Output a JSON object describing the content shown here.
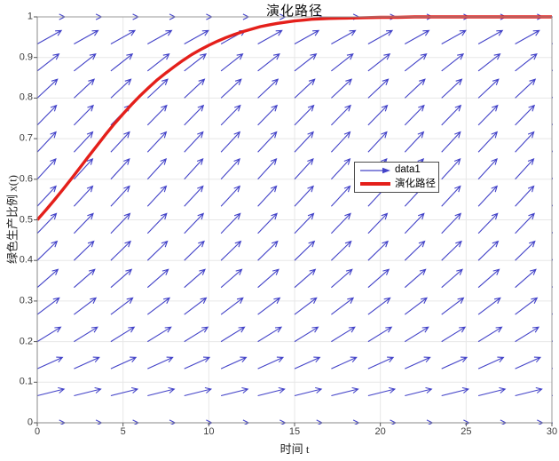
{
  "title": "演化路径",
  "axes": {
    "xlabel": "时间 t",
    "ylabel": "绿色生产比例 x(t)",
    "x_tick_labels": [
      "0",
      "5",
      "10",
      "15",
      "20",
      "25",
      "30"
    ],
    "y_tick_labels": [
      "0",
      "0.1",
      "0.2",
      "0.3",
      "0.4",
      "0.5",
      "0.6",
      "0.7",
      "0.8",
      "0.9",
      "1"
    ]
  },
  "legend": {
    "entries": [
      {
        "label": "data1",
        "marker": "blue-quiver-arrow",
        "color": "#4343c8"
      },
      {
        "label": "演化路径",
        "marker": "red-thick-line",
        "color": "#e41f1a"
      }
    ]
  },
  "colors": {
    "quiver": "#4343c8",
    "trajectory": "#e41f1a",
    "grid": "#e7e7e7",
    "axis_box": "#999999",
    "axis_main": "#8a8a8a",
    "tick": "#555555",
    "background": "#ffffff"
  },
  "chart_data": {
    "type": "line",
    "title": "演化路径",
    "xlabel": "时间 t",
    "ylabel": "绿色生产比例 x(t)",
    "xlim": [
      0,
      30
    ],
    "ylim": [
      0,
      1
    ],
    "grid": true,
    "x_ticks": [
      0,
      5,
      10,
      15,
      20,
      25,
      30
    ],
    "y_ticks": [
      0,
      0.1,
      0.2,
      0.3,
      0.4,
      0.5,
      0.6,
      0.7,
      0.8,
      0.9,
      1
    ],
    "legend_position": "inside-center-right",
    "series": [
      {
        "name": "data1",
        "type": "quiver",
        "color": "#4343c8",
        "description": "direction field of replicator dynamics dx/dt = k·x(1-x); arrows point up-right, horizontal at x=0 and x=1, steepest near the middle",
        "k": 0.26,
        "grid": {
          "t_min": 0,
          "t_max": 30,
          "t_count": 15,
          "x_min": 0,
          "x_max": 1,
          "x_count": 16
        }
      },
      {
        "name": "演化路径",
        "type": "line",
        "color": "#e41f1a",
        "line_width": 3.4,
        "points": [
          [
            0,
            0.5
          ],
          [
            0.5,
            0.524
          ],
          [
            1,
            0.549
          ],
          [
            1.5,
            0.575
          ],
          [
            2,
            0.602
          ],
          [
            2.5,
            0.629
          ],
          [
            3,
            0.657
          ],
          [
            3.5,
            0.684
          ],
          [
            4,
            0.711
          ],
          [
            4.5,
            0.737
          ],
          [
            5,
            0.761
          ],
          [
            5.5,
            0.784
          ],
          [
            6,
            0.806
          ],
          [
            6.5,
            0.826
          ],
          [
            7,
            0.845
          ],
          [
            7.5,
            0.862
          ],
          [
            8,
            0.878
          ],
          [
            8.5,
            0.893
          ],
          [
            9,
            0.907
          ],
          [
            9.5,
            0.919
          ],
          [
            10,
            0.93
          ],
          [
            10.5,
            0.94
          ],
          [
            11,
            0.949
          ],
          [
            11.5,
            0.957
          ],
          [
            12,
            0.964
          ],
          [
            12.5,
            0.97
          ],
          [
            13,
            0.976
          ],
          [
            13.5,
            0.98
          ],
          [
            14,
            0.984
          ],
          [
            14.5,
            0.987
          ],
          [
            15,
            0.99
          ],
          [
            15.5,
            0.992
          ],
          [
            16,
            0.994
          ],
          [
            17,
            0.996
          ],
          [
            18,
            0.997
          ],
          [
            19,
            0.998
          ],
          [
            20,
            0.999
          ],
          [
            21,
            0.999
          ],
          [
            22,
            1.0
          ],
          [
            24,
            1.0
          ],
          [
            26,
            1.0
          ],
          [
            28,
            1.0
          ],
          [
            30,
            1.0
          ]
        ]
      }
    ]
  }
}
